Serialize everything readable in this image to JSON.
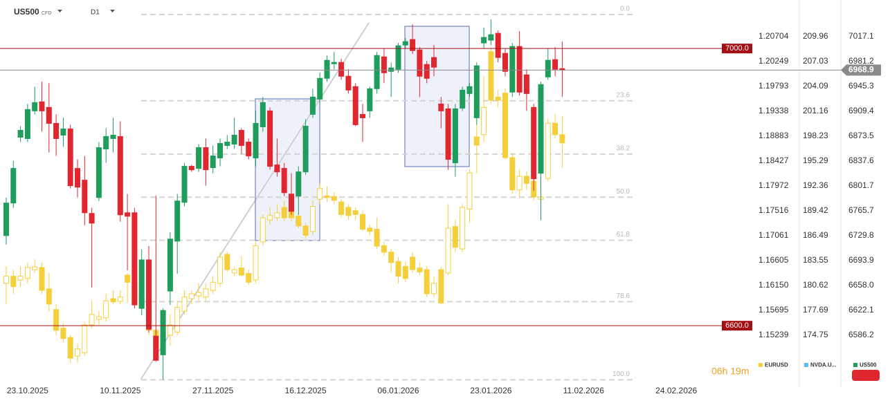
{
  "chart_data": {
    "type": "candlestick",
    "title": "US500",
    "title_suffix": "CFD",
    "timeframe": "D1",
    "countdown": "06h 19m",
    "categories": [
      null,
      null,
      null,
      "23.10.2025",
      null,
      null,
      null,
      null,
      null,
      null,
      null,
      null,
      null,
      null,
      null,
      null,
      "10.11.2025",
      null,
      null,
      null,
      null,
      null,
      null,
      null,
      null,
      null,
      null,
      null,
      null,
      "27.11.2025",
      null,
      null,
      null,
      null,
      null,
      null,
      null,
      null,
      null,
      null,
      null,
      null,
      "16.12.2025",
      null,
      null,
      null,
      null,
      null,
      null,
      null,
      null,
      null,
      null,
      null,
      null,
      "06.01.2026",
      null,
      null,
      null,
      null,
      null,
      null,
      null,
      null,
      null,
      null,
      null,
      null,
      "23.01.2026",
      null,
      null,
      null,
      null,
      null,
      null,
      null,
      null,
      null,
      null,
      null,
      null,
      "11.02.2026",
      null,
      null,
      null,
      null,
      null,
      null,
      null,
      null,
      null,
      null,
      null,
      null,
      "24.02.2026"
    ],
    "series": [
      {
        "name": "EURUSD",
        "color": "#f5cf3a",
        "axis": "y",
        "open": [
          1.1619,
          1.1632,
          1.1625,
          1.1628,
          1.1644,
          1.1648,
          1.1609,
          1.1571,
          1.1537,
          1.152,
          1.1486,
          1.1492,
          1.1543,
          1.1553,
          1.1556,
          1.1591,
          1.1586,
          1.1634,
          1.1621,
          1.1594,
          1.1577,
          1.1533,
          1.153,
          1.1524,
          1.153,
          1.1568,
          1.1591,
          1.1596,
          1.1594,
          1.1606,
          1.1619,
          1.1672,
          1.1638,
          1.1647,
          1.1637,
          1.1625,
          1.1695,
          1.1735,
          1.1739,
          1.1758,
          1.1752,
          1.1742,
          1.1724,
          1.1714,
          1.1773,
          1.1779,
          1.1778,
          1.1768,
          1.1758,
          1.1752,
          1.1745,
          1.172,
          1.1718,
          1.1688,
          1.1676,
          1.1659,
          1.165,
          1.1667,
          1.1647,
          1.1644,
          1.16,
          1.1644,
          1.1638,
          1.1723,
          1.1682,
          1.1755,
          1.1887,
          1.1891,
          1.2043,
          1.196,
          1.1967,
          1.1849,
          1.179,
          1.1815,
          1.1806,
          1.1773,
          1.1811,
          1.1912,
          1.1891,
          null,
          null,
          null,
          null,
          null,
          null,
          null,
          null,
          null,
          null,
          null,
          null,
          null,
          null,
          null,
          null
        ],
        "high": [
          1.165,
          1.1644,
          1.165,
          1.1657,
          1.1663,
          1.1657,
          1.1638,
          1.1581,
          1.1546,
          1.1524,
          1.1508,
          1.1549,
          1.1587,
          1.1568,
          1.16,
          1.1606,
          1.1606,
          1.1638,
          1.1632,
          1.1606,
          1.1583,
          1.1549,
          1.1543,
          1.1562,
          1.1587,
          1.1606,
          1.1606,
          1.1619,
          1.1619,
          1.1632,
          1.1676,
          1.1676,
          1.165,
          1.1669,
          1.1644,
          1.1695,
          1.1745,
          1.1758,
          1.1764,
          1.1771,
          1.1758,
          1.1748,
          1.173,
          1.1771,
          1.1802,
          1.1796,
          1.1786,
          1.1773,
          1.1764,
          1.1758,
          1.1752,
          1.1726,
          1.1739,
          1.1695,
          1.1682,
          1.1667,
          1.1659,
          1.1676,
          1.1657,
          1.165,
          1.1632,
          1.165,
          1.1764,
          1.1735,
          1.1764,
          1.1828,
          1.191,
          1.1998,
          1.2049,
          1.1973,
          1.1976,
          1.1857,
          1.1828,
          1.1824,
          1.1815,
          1.1821,
          1.192,
          1.1929,
          1.1925,
          null,
          null,
          null,
          null,
          null,
          null,
          null,
          null,
          null,
          null,
          null,
          null,
          null,
          null,
          null,
          null
        ],
        "low": [
          1.1581,
          1.16,
          1.1613,
          1.1619,
          1.1638,
          1.16,
          1.1568,
          1.1524,
          1.1511,
          1.1473,
          1.1473,
          1.1486,
          1.1537,
          1.1543,
          1.1549,
          1.1581,
          1.1581,
          1.1583,
          1.1581,
          1.1568,
          1.1524,
          1.1499,
          1.1511,
          1.1505,
          1.1524,
          1.1562,
          1.1581,
          1.1587,
          1.1587,
          1.16,
          1.1613,
          1.164,
          1.1632,
          1.1632,
          1.1616,
          1.1619,
          1.1688,
          1.1726,
          1.1733,
          1.1733,
          1.1733,
          1.172,
          1.1701,
          1.1707,
          1.1764,
          1.1768,
          1.1764,
          1.1739,
          1.1735,
          1.1735,
          1.1714,
          1.1707,
          1.1682,
          1.1669,
          1.1638,
          1.1619,
          1.1621,
          1.1638,
          1.1634,
          1.1594,
          1.1594,
          1.1581,
          1.1634,
          1.1676,
          1.1676,
          1.173,
          1.1821,
          1.1878,
          1.1948,
          1.1941,
          1.1847,
          1.1783,
          1.1777,
          1.179,
          1.1771,
          1.1771,
          1.1806,
          1.1885,
          1.1831,
          null,
          null,
          null,
          null,
          null,
          null,
          null,
          null,
          null,
          null,
          null,
          null,
          null,
          null,
          null,
          null
        ],
        "close": [
          1.1632,
          1.1613,
          1.1632,
          1.1648,
          1.1649,
          1.1606,
          1.1581,
          1.1533,
          1.1518,
          1.1482,
          1.1499,
          1.1543,
          1.1562,
          1.1558,
          1.1587,
          1.1585,
          1.1594,
          1.1621,
          1.1586,
          1.1575,
          1.1533,
          1.1505,
          1.1518,
          1.1543,
          1.1575,
          1.1594,
          1.16,
          1.1602,
          1.1609,
          1.1621,
          1.1667,
          1.1644,
          1.1644,
          1.1634,
          1.1621,
          1.1688,
          1.1739,
          1.1743,
          1.1748,
          1.1739,
          1.1739,
          1.1724,
          1.1707,
          1.176,
          1.1793,
          1.1776,
          1.1771,
          1.1745,
          1.1743,
          1.1745,
          1.1718,
          1.1714,
          1.1687,
          1.1676,
          1.1657,
          1.1632,
          1.1628,
          1.1644,
          1.164,
          1.16,
          1.1619,
          1.1583,
          1.172,
          1.1685,
          1.1758,
          1.1821,
          1.1872,
          1.1941,
          1.1954,
          1.1954,
          1.1849,
          1.179,
          1.1815,
          1.1802,
          1.1777,
          1.1777,
          1.1912,
          1.1891,
          1.1876,
          null,
          null,
          null,
          null,
          null,
          null,
          null,
          null,
          null,
          null,
          null,
          null,
          null,
          null,
          null,
          null
        ]
      },
      {
        "name": "NVDA.U...",
        "color": "#5bc0eb",
        "axis": "y2"
      },
      {
        "name": "US500",
        "color": "#1f9d5c",
        "color_down": "#e0262f",
        "axis": "y3",
        "open": [
          6730,
          6777,
          6872,
          6870,
          6910,
          6923,
          6915,
          6892,
          6875,
          6884,
          6827,
          6810,
          6762,
          6785,
          6855,
          6870,
          6873,
          6763,
          6763,
          6625,
          6695,
          6585,
          6558,
          6650,
          6722,
          6778,
          6830,
          6827,
          6857,
          6828,
          6842,
          6860,
          6862,
          6882,
          6865,
          6842,
          6887,
          6910,
          6832,
          6827,
          6790,
          6787,
          6822,
          6905,
          6927,
          6957,
          6978,
          6980,
          6960,
          6945,
          6905,
          6910,
          6942,
          6988,
          6967,
          6970,
          7005,
          7013,
          6998,
          6977,
          6987,
          6920,
          6913,
          6835,
          6914,
          6935,
          6900,
          7008,
          7012,
          7022,
          6993,
          6937,
          7003,
          6962,
          6915,
          6820,
          6959,
          6984,
          6971,
          null,
          null,
          null,
          null,
          null,
          null,
          null,
          null,
          null,
          null,
          null,
          null,
          null,
          null,
          null,
          null
        ],
        "high": [
          6785,
          6838,
          6888,
          6920,
          6945,
          6952,
          6950,
          6905,
          6900,
          6890,
          6840,
          6845,
          6770,
          6865,
          6885,
          6900,
          6895,
          6790,
          6770,
          6710,
          6715,
          6788,
          6625,
          6735,
          6790,
          6835,
          6832,
          6862,
          6870,
          6860,
          6870,
          6875,
          6900,
          6885,
          6870,
          6910,
          6930,
          6915,
          6870,
          6835,
          6820,
          6830,
          6898,
          6942,
          6965,
          6990,
          6995,
          6985,
          6970,
          6950,
          6920,
          6945,
          6995,
          7000,
          6980,
          7008,
          7015,
          7035,
          7002,
          6982,
          7005,
          6930,
          6920,
          6920,
          6945,
          6950,
          6980,
          7030,
          7042,
          7026,
          7000,
          7008,
          7025,
          6970,
          6920,
          6952,
          7000,
          7002,
          7010,
          null,
          null,
          null,
          null,
          null,
          null,
          null,
          null,
          null,
          null,
          null,
          null,
          null,
          null,
          null,
          null
        ],
        "low": [
          6717,
          6770,
          6865,
          6865,
          6905,
          6880,
          6850,
          6845,
          6858,
          6798,
          6785,
          6745,
          6655,
          6780,
          6835,
          6850,
          6750,
          6680,
          6625,
          6615,
          6590,
          6548,
          6522,
          6630,
          6675,
          6772,
          6822,
          6822,
          6802,
          6820,
          6830,
          6855,
          6855,
          6848,
          6840,
          6830,
          6880,
          6825,
          6815,
          6787,
          6760,
          6760,
          6818,
          6900,
          6920,
          6952,
          6970,
          6955,
          6935,
          6888,
          6865,
          6900,
          6935,
          6950,
          6930,
          6965,
          7000,
          6992,
          6930,
          6950,
          6960,
          6885,
          6825,
          6815,
          6910,
          6930,
          6890,
          7000,
          7005,
          6980,
          6960,
          6930,
          6932,
          6910,
          6795,
          6752,
          6955,
          6960,
          6930,
          null,
          null,
          null,
          null,
          null,
          null,
          null,
          null,
          null,
          null,
          null,
          null,
          null,
          null,
          null,
          null
        ],
        "close": [
          6777,
          6827,
          6882,
          6912,
          6922,
          6910,
          6892,
          6870,
          6884,
          6802,
          6800,
          6763,
          6748,
          6857,
          6873,
          6875,
          6760,
          6758,
          6630,
          6695,
          6595,
          6550,
          6622,
          6725,
          6780,
          6830,
          6825,
          6857,
          6825,
          6845,
          6863,
          6865,
          6875,
          6860,
          6845,
          6892,
          6922,
          6830,
          6822,
          6792,
          6765,
          6822,
          6888,
          6930,
          6957,
          6983,
          6980,
          6960,
          6940,
          6890,
          6900,
          6942,
          6990,
          6965,
          6972,
          7004,
          7010,
          6997,
          6960,
          6957,
          6973,
          6910,
          6840,
          6913,
          6940,
          6945,
          6975,
          7016,
          7020,
          6987,
          6967,
          7003,
          6937,
          6935,
          6812,
          6948,
          6983,
          6970,
          6968.9,
          null,
          null,
          null,
          null,
          null,
          null,
          null,
          null,
          null,
          null,
          null,
          null,
          null,
          null,
          null,
          null
        ]
      }
    ],
    "ylim": [
      1.14291,
      1.21375
    ],
    "yticks": [
      1.20704,
      1.20249,
      1.19793,
      1.19338,
      1.18883,
      1.18427,
      1.17972,
      1.17516,
      1.17061,
      1.16605,
      {
        "value": 1.1615,
        "label": "1.16150"
      },
      1.15695,
      1.15239
    ],
    "y2lim": [
      168.64,
      214.28
    ],
    "y2ticks": [
      209.96,
      207.03,
      204.09,
      201.16,
      198.23,
      195.29,
      192.36,
      189.42,
      186.49,
      183.55,
      180.62,
      177.69,
      174.75
    ],
    "y3lim": [
      6511.4,
      7070.0
    ],
    "y3ticks": [
      7017.1,
      6981.2,
      6945.3,
      6909.4,
      6873.5,
      6837.6,
      6801.7,
      6765.7,
      6729.8,
      6693.9,
      {
        "value": 6658,
        "label": "6658.0"
      },
      6622.1,
      6586.2
    ],
    "levels": [
      {
        "value": 7000,
        "value_label": "7000.0",
        "color": "#a30f12"
      },
      {
        "value": 6600,
        "value_label": "6600.0",
        "color": "#a30f12"
      }
    ],
    "last_price": 6968.9,
    "fibonacci": {
      "high": 7049,
      "low": 6522,
      "levels": [
        {
          "value": 0,
          "label": "0.0"
        },
        23.6,
        38.2,
        {
          "value": 50,
          "label": "50.0"
        },
        61.8,
        78.6,
        {
          "value": 100,
          "label": "100.0"
        }
      ]
    },
    "grid": false
  }
}
